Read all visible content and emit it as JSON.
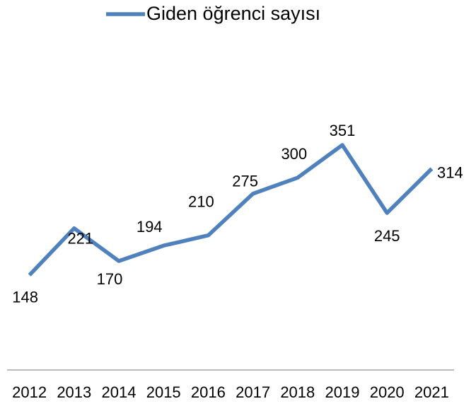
{
  "chart_data": {
    "type": "line",
    "categories": [
      "2012",
      "2013",
      "2014",
      "2015",
      "2016",
      "2017",
      "2018",
      "2019",
      "2020",
      "2021"
    ],
    "series": [
      {
        "name": "Giden öğrenci sayısı",
        "color": "#4f81bd",
        "values": [
          148,
          221,
          170,
          194,
          210,
          275,
          300,
          351,
          245,
          314
        ]
      }
    ],
    "ylim": [
      0,
      400
    ],
    "legend": "top",
    "data_labels": true
  }
}
